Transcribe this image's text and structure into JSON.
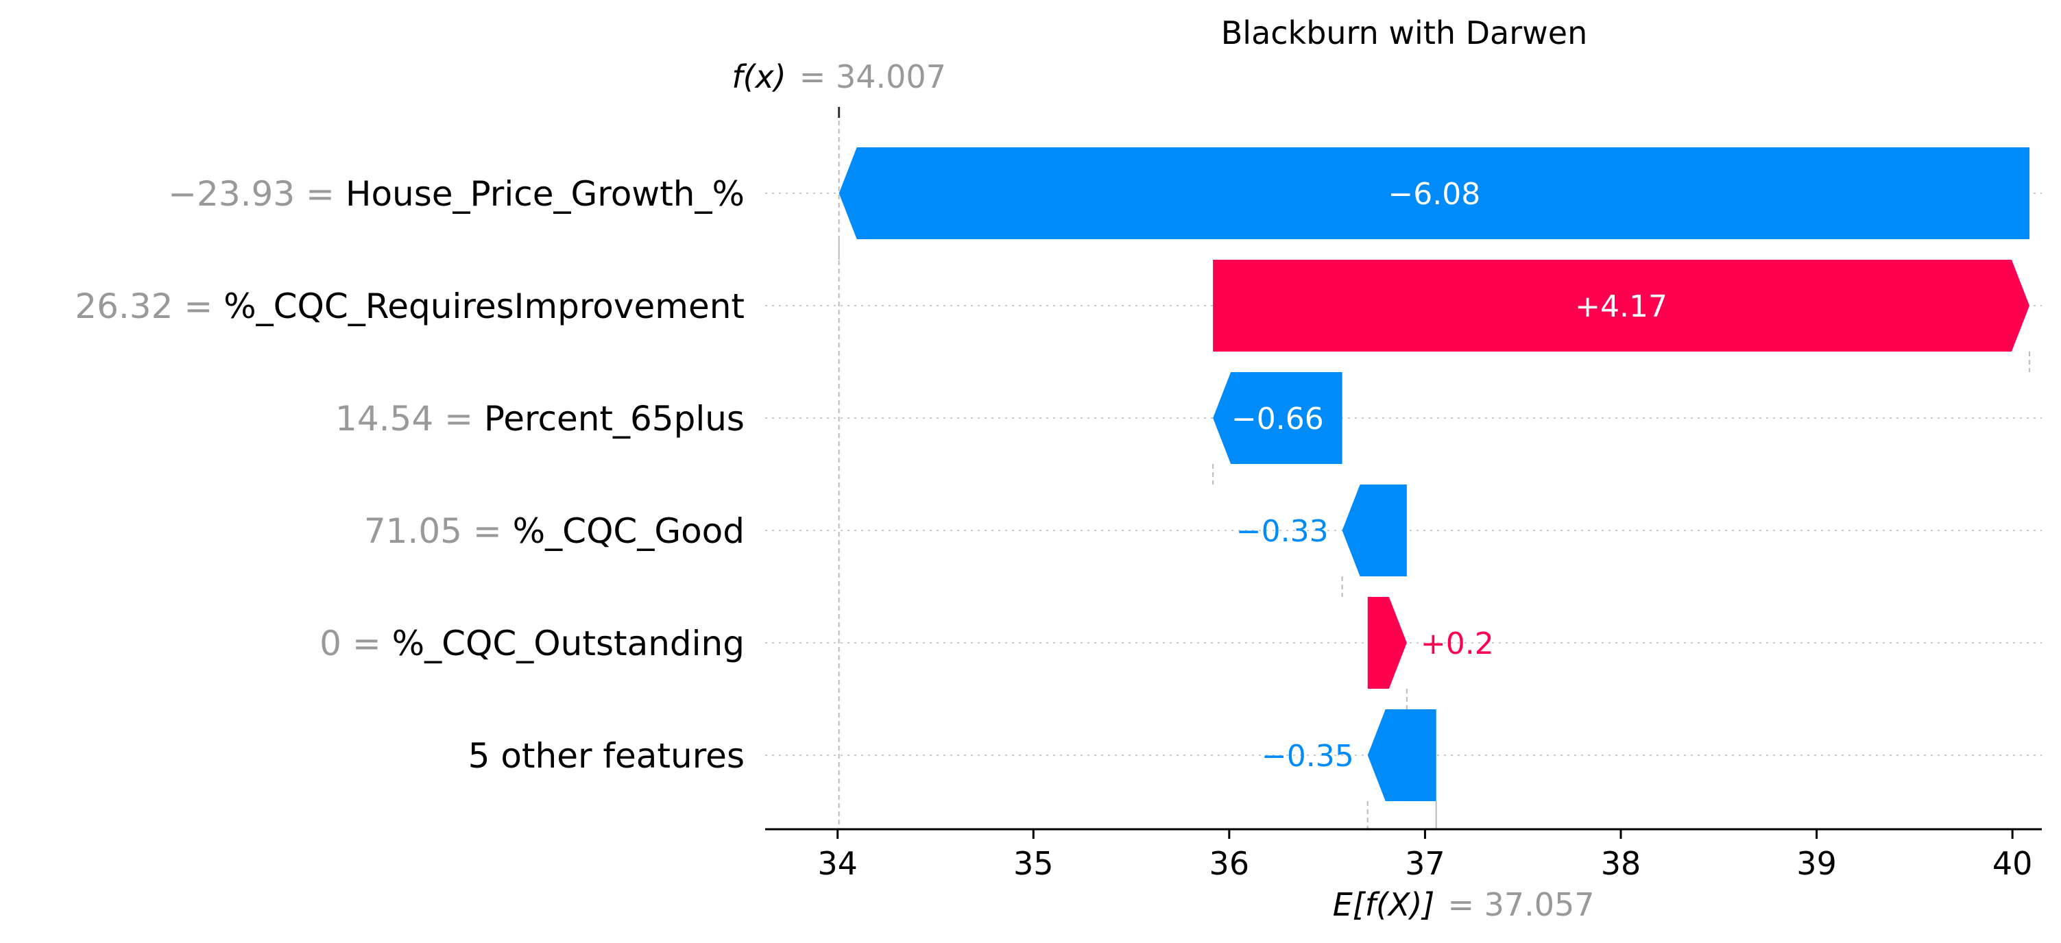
{
  "chart_data": {
    "type": "waterfall",
    "title": "Blackburn with Darwen",
    "fx": {
      "label": "f(x)",
      "value": 34.007,
      "value_text": "= 34.007"
    },
    "efx": {
      "label": "E[f(X)]",
      "value": 37.057,
      "value_text": "= 37.057"
    },
    "xlim": [
      33.63,
      40.15
    ],
    "xticks": [
      34,
      35,
      36,
      37,
      38,
      39,
      40
    ],
    "xtick_labels": [
      "34",
      "35",
      "36",
      "37",
      "38",
      "39",
      "40"
    ],
    "features": [
      {
        "value_text": "−23.93 =",
        "name": "House_Price_Growth_%",
        "contribution": -6.08,
        "label": "−6.08",
        "start": 40.087
      },
      {
        "value_text": "26.32 =",
        "name": "%_CQC_RequiresImprovement",
        "contribution": 4.17,
        "label": "+4.17",
        "start": 35.917
      },
      {
        "value_text": "14.54 =",
        "name": "Percent_65plus",
        "contribution": -0.66,
        "label": "−0.66",
        "start": 36.577
      },
      {
        "value_text": "71.05 =",
        "name": "%_CQC_Good",
        "contribution": -0.33,
        "label": "−0.33",
        "start": 36.907
      },
      {
        "value_text": "0 =",
        "name": "%_CQC_Outstanding",
        "contribution": 0.2,
        "label": "+0.2",
        "start": 36.707
      },
      {
        "value_text": "",
        "name": "5 other features",
        "contribution": -0.35,
        "label": "−0.35",
        "start": 37.057
      }
    ],
    "colors": {
      "positive": "#ff0051",
      "negative": "#008bfb",
      "muted": "#999999"
    },
    "grid": "horizontal-dotted"
  }
}
